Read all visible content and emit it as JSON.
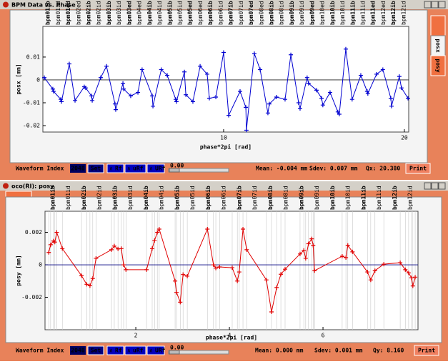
{
  "windows": [
    {
      "title": "BPM Data vs. Phase",
      "tabs": [
        "posx",
        "posy"
      ],
      "chart": {
        "type": "line",
        "ylabel": "posx [mm]",
        "xlabel": "phase*2pi [rad]",
        "xlim": [
          0,
          20.24
        ],
        "ylim": [
          -0.0228,
          0.0234
        ],
        "xticks": [
          10,
          20
        ],
        "yticks": [
          0.01,
          0,
          -0.01,
          -0.02
        ],
        "grid": false,
        "zero_line_color": "#202020",
        "bpm_labels": [
          "bpm01ib",
          "bpm01id",
          "bpm01ed",
          "bpm02ed",
          "bpm02ib",
          "bpm02id",
          "bpm03ib",
          "bpm03id",
          "bpm03ed",
          "bpm04ed",
          "bpm04ib",
          "bpm04id",
          "bpm05ib",
          "bpm05id",
          "bpm05ed",
          "bpm06ed",
          "bpm06ib",
          "bpm06id",
          "bpm07ib",
          "bpm07id",
          "bpm07ed",
          "bpm08ed",
          "bpm08ib",
          "bpm08id",
          "bpm09ib",
          "bpm09id",
          "bpm09ed",
          "bpm10ed",
          "bpm10ib",
          "bpm10id",
          "bpm11ib",
          "bpm11id",
          "bpm11ed",
          "bpm12ed",
          "bpm12ib",
          "bpm12id"
        ],
        "x": [
          0.08,
          0.55,
          0.59,
          0.99,
          1.03,
          1.46,
          1.78,
          2.29,
          2.37,
          2.69,
          2.73,
          3.2,
          3.52,
          3.99,
          4.03,
          4.43,
          4.47,
          4.86,
          5.26,
          5.49,
          6.05,
          6.09,
          6.55,
          6.88,
          7.35,
          7.39,
          7.83,
          7.91,
          8.3,
          8.7,
          9.09,
          9.21,
          9.57,
          10.0,
          10.28,
          10.91,
          11.23,
          11.26,
          11.7,
          12.02,
          12.45,
          12.53,
          12.92,
          13.4,
          13.72,
          14.15,
          14.23,
          14.62,
          14.7,
          15.14,
          15.42,
          15.49,
          15.89,
          16.32,
          16.4,
          16.76,
          17.11,
          17.59,
          17.94,
          17.98,
          18.46,
          18.81,
          19.25,
          19.29,
          19.72,
          19.84,
          20.2
        ],
        "series": [
          {
            "color": "#0000d0",
            "values": [
              0.001,
              -0.004,
              -0.005,
              -0.0085,
              -0.0095,
              0.007,
              -0.009,
              -0.003,
              -0.0035,
              -0.007,
              -0.009,
              0.001,
              0.006,
              -0.0105,
              -0.013,
              -0.0015,
              -0.004,
              -0.007,
              -0.0055,
              0.0045,
              -0.007,
              -0.0115,
              0.0045,
              0.002,
              -0.0085,
              -0.0095,
              0.0035,
              -0.0065,
              -0.0095,
              0.006,
              0.0025,
              -0.008,
              -0.0075,
              0.012,
              -0.0155,
              -0.005,
              -0.012,
              -0.022,
              0.0115,
              0.0045,
              -0.0145,
              -0.0105,
              -0.0075,
              -0.0085,
              0.011,
              -0.01,
              -0.0125,
              0.001,
              -0.0015,
              -0.0045,
              -0.008,
              -0.011,
              -0.0055,
              -0.014,
              -0.015,
              0.0135,
              -0.0085,
              0.002,
              -0.005,
              -0.006,
              0.0025,
              0.0045,
              -0.008,
              -0.0115,
              0.0015,
              -0.0035,
              -0.008
            ]
          }
        ]
      },
      "controls": {
        "waveform_label": "Waveform Index",
        "index": "2048",
        "set": "Set",
        "buttons": [
          "Rf",
          "uRf",
          "URf"
        ],
        "slider": "0.00",
        "mean": "Mean: -0.004 mm",
        "sdev": "Sdev: 0.007 mm",
        "tune": "Qx: 20.380",
        "print": "Print"
      }
    },
    {
      "title": "oco(RI): posy",
      "chart": {
        "type": "line",
        "ylabel": "posy [mm]",
        "xlabel": "phase*2pi [rad]",
        "xlim": [
          0.06,
          8.03
        ],
        "ylim": [
          -0.004,
          0.0033
        ],
        "xticks": [
          2,
          4,
          6
        ],
        "yticks": [
          0.002,
          0,
          -0.002
        ],
        "grid": true,
        "zero_line_color": "#000080",
        "bpm_labels": [
          "bpm01ib",
          "bpm01id",
          "bpm02ib",
          "bpm02id",
          "bpm03ib",
          "bpm03id",
          "bpm04ib",
          "bpm04id",
          "bpm05ib",
          "bpm05id",
          "bpm06ib",
          "bpm06id",
          "bpm07ib",
          "bpm07id",
          "bpm08ib",
          "bpm08id",
          "bpm09ib",
          "bpm09id",
          "bpm10ib",
          "bpm10id",
          "bpm11ib",
          "bpm11id",
          "bpm12ib",
          "bpm12id"
        ],
        "x": [
          0.14,
          0.18,
          0.24,
          0.27,
          0.31,
          0.43,
          0.84,
          0.95,
          1.02,
          1.08,
          1.15,
          1.48,
          1.54,
          1.62,
          1.69,
          1.74,
          1.79,
          2.23,
          2.35,
          2.4,
          2.46,
          2.5,
          2.84,
          2.87,
          2.95,
          3.01,
          3.1,
          3.53,
          3.66,
          3.71,
          3.79,
          4.06,
          4.17,
          4.21,
          4.29,
          4.37,
          4.79,
          4.9,
          5.01,
          5.1,
          5.19,
          5.51,
          5.59,
          5.63,
          5.69,
          5.76,
          5.79,
          5.82,
          6.41,
          6.49,
          6.53,
          6.63,
          6.95,
          7.02,
          7.11,
          7.3,
          7.65,
          7.76,
          7.83,
          7.89,
          7.92,
          7.97
        ],
        "series": [
          {
            "color": "#e00000",
            "values": [
              0.00076,
              0.00124,
              0.00147,
              0.0014,
              0.002,
              0.001,
              -0.00067,
              -0.0012,
              -0.00129,
              -0.00084,
              0.0004,
              0.00093,
              0.00116,
              0.00098,
              0.001,
              0,
              -0.0003,
              -0.0003,
              0.001,
              0.0015,
              0.002,
              0.0022,
              -0.001,
              -0.0017,
              -0.0023,
              -0.0006,
              -0.0007,
              0.0022,
              0,
              -0.0002,
              -0.00013,
              -0.00018,
              -0.001,
              -0.00044,
              0.0022,
              0.00093,
              -0.00093,
              -0.0029,
              -0.0014,
              -0.00058,
              -0.00027,
              0.00067,
              0.00089,
              0.0004,
              0.0013,
              0.0016,
              0.0012,
              -0.00036,
              0.00053,
              0.00044,
              0.0012,
              0.0008,
              -0.00044,
              -0.00093,
              -0.00036,
              4e-05,
              0.00013,
              -0.0003,
              -0.0005,
              -0.0008,
              -0.0013,
              -0.00076
            ]
          }
        ]
      },
      "controls": {
        "waveform_label": "Waveform Index",
        "index": "2048",
        "set": "Set",
        "buttons": [
          "Rf",
          "uRf",
          "URf"
        ],
        "slider": "0.00",
        "mean": "Mean: 0.000 mm",
        "sdev": "Sdev: 0.001 mm",
        "tune": "Qy: 8.160",
        "print": "Print"
      }
    }
  ]
}
